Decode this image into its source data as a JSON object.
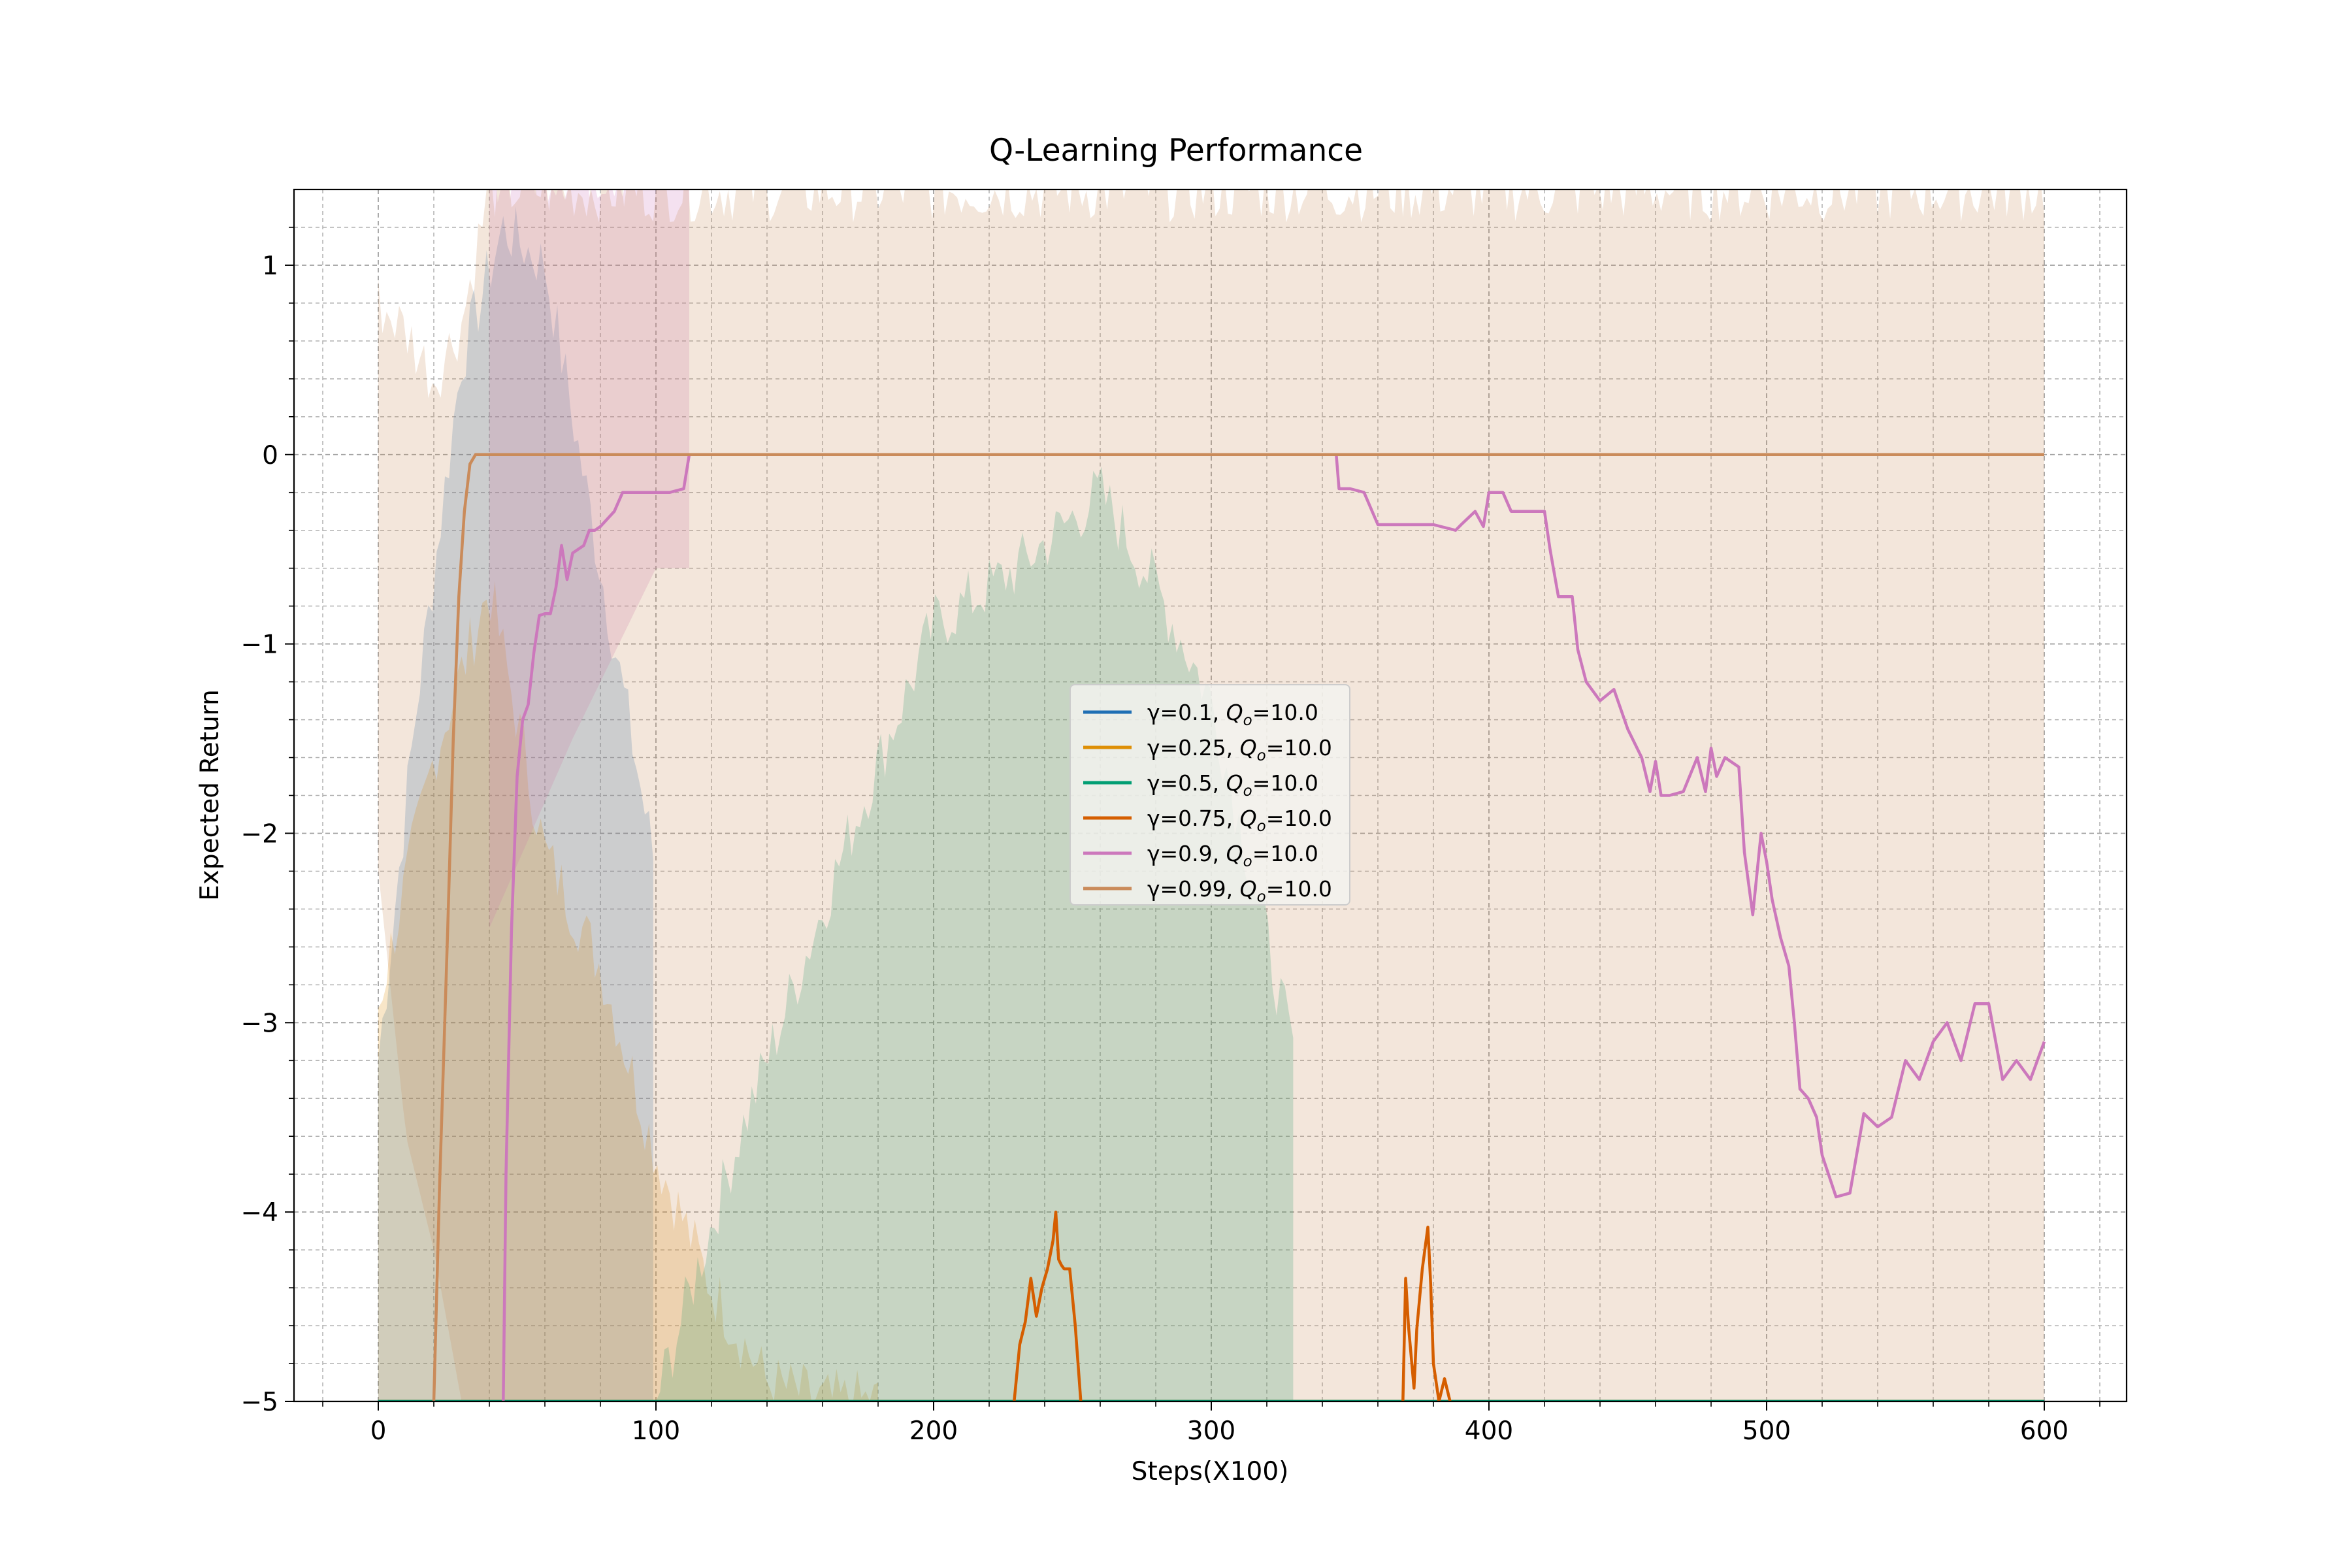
{
  "chart_data": {
    "type": "line",
    "title": "Q-Learning Performance",
    "xlabel": "Steps(X100)",
    "ylabel": "Expected Return",
    "xlim": [
      -30,
      628
    ],
    "ylim": [
      -5,
      1.4
    ],
    "xticks": [
      0,
      100,
      200,
      300,
      400,
      500,
      600
    ],
    "xtick_labels": [
      "0",
      "100",
      "200",
      "300",
      "400",
      "500",
      "600"
    ],
    "yticks": [
      1,
      0,
      -1,
      -2,
      -3,
      -4,
      -5
    ],
    "ytick_labels": [
      "1",
      "0",
      "−1",
      "−2",
      "−3",
      "−4",
      "−5"
    ],
    "grid": true,
    "legend_position": "center",
    "series": [
      {
        "name": "γ=0.1, Q_o=10.0",
        "legend_prefix": "γ=0.1, ",
        "color": "#1f6fb4",
        "x": [
          0,
          600
        ],
        "y": [
          -5,
          -5
        ],
        "band_x": [
          0,
          14,
          30,
          45,
          60,
          80,
          100
        ],
        "band_lo": [
          -5,
          -5,
          -5,
          -5,
          -5,
          -5,
          -5
        ],
        "band_hi": [
          -3.2,
          -1.3,
          0.5,
          1.2,
          1.0,
          -0.6,
          -2.2
        ]
      },
      {
        "name": "γ=0.25, Q_o=10.0",
        "legend_prefix": "γ=0.25, ",
        "color": "#de8f05",
        "x": [
          0,
          600
        ],
        "y": [
          -5,
          -5
        ],
        "band_x": [
          0,
          20,
          40,
          60,
          80,
          100,
          120,
          140,
          160,
          180
        ],
        "band_lo": [
          -5,
          -5,
          -5,
          -5,
          -5,
          -5,
          -5,
          -5,
          -5,
          -5
        ],
        "band_hi": [
          -2.9,
          -1.6,
          -0.7,
          -2.1,
          -2.7,
          -3.7,
          -4.4,
          -4.9,
          -5,
          -5
        ]
      },
      {
        "name": "γ=0.5, Q_o=10.0",
        "legend_prefix": "γ=0.5, ",
        "color": "#029e73",
        "x": [
          0,
          600
        ],
        "y": [
          -5,
          -5
        ],
        "band_x": [
          100,
          130,
          170,
          200,
          230,
          260,
          280,
          300,
          330
        ],
        "band_lo": [
          -5,
          -5,
          -5,
          -5,
          -5,
          -5,
          -5,
          -5,
          -5
        ],
        "band_hi": [
          -5,
          -3.6,
          -2.0,
          -0.9,
          -0.6,
          -0.2,
          -0.7,
          -1.3,
          -3.2
        ]
      },
      {
        "name": "γ=0.75, Q_o=10.0",
        "legend_prefix": "γ=0.75, ",
        "color": "#d55e00",
        "x": [
          229,
          231,
          233,
          235,
          237,
          239,
          241,
          243,
          244,
          245,
          246,
          247,
          249,
          251,
          253
        ],
        "y": [
          -5,
          -4.7,
          -4.58,
          -4.35,
          -4.55,
          -4.4,
          -4.3,
          -4.15,
          -4.0,
          -4.25,
          -4.28,
          -4.3,
          -4.3,
          -4.6,
          -5
        ],
        "x2": [
          369,
          370,
          371,
          373,
          374,
          376,
          378,
          379,
          380,
          382,
          384,
          386
        ],
        "y2": [
          -5,
          -4.35,
          -4.6,
          -4.93,
          -4.62,
          -4.3,
          -4.08,
          -4.38,
          -4.8,
          -5,
          -4.88,
          -5
        ],
        "band_x": [],
        "band_lo": [],
        "band_hi": []
      },
      {
        "name": "γ=0.9, Q_o=10.0",
        "legend_prefix": "γ=0.9, ",
        "color": "#cc78bc",
        "x": [
          45,
          46,
          48,
          50,
          52,
          54,
          56,
          58,
          60,
          62,
          64,
          66,
          68,
          70,
          72,
          74,
          76,
          78,
          80,
          85,
          88,
          90,
          95,
          100,
          105,
          110,
          112,
          113,
          345,
          346,
          348,
          350,
          355,
          360,
          370,
          380,
          388,
          390,
          395,
          398,
          400,
          405,
          408,
          410,
          415,
          420,
          422,
          425,
          430,
          432,
          435,
          440,
          445,
          450,
          455,
          458,
          460,
          462,
          465,
          470,
          475,
          478,
          480,
          482,
          485,
          490,
          492,
          495,
          498,
          500,
          502,
          505,
          508,
          510,
          512,
          515,
          518,
          520,
          525,
          530,
          535,
          540,
          545,
          550,
          555,
          560,
          565,
          570,
          575,
          580,
          585,
          590,
          595,
          600
        ],
        "y": [
          -5,
          -3.8,
          -2.5,
          -1.7,
          -1.4,
          -1.32,
          -1.05,
          -0.85,
          -0.84,
          -0.84,
          -0.7,
          -0.48,
          -0.66,
          -0.52,
          -0.5,
          -0.48,
          -0.4,
          -0.4,
          -0.38,
          -0.3,
          -0.2,
          -0.2,
          -0.2,
          -0.2,
          -0.2,
          -0.18,
          0,
          0,
          0,
          -0.18,
          -0.18,
          -0.18,
          -0.2,
          -0.37,
          -0.37,
          -0.37,
          -0.4,
          -0.37,
          -0.3,
          -0.38,
          -0.2,
          -0.2,
          -0.3,
          -0.3,
          -0.3,
          -0.3,
          -0.5,
          -0.75,
          -0.75,
          -1.03,
          -1.2,
          -1.3,
          -1.24,
          -1.45,
          -1.6,
          -1.78,
          -1.62,
          -1.8,
          -1.8,
          -1.78,
          -1.6,
          -1.78,
          -1.55,
          -1.7,
          -1.6,
          -1.65,
          -2.1,
          -2.43,
          -2.0,
          -2.15,
          -2.35,
          -2.55,
          -2.7,
          -3.0,
          -3.35,
          -3.4,
          -3.5,
          -3.7,
          -3.92,
          -3.9,
          -3.48,
          -3.55,
          -3.5,
          -3.2,
          -3.3,
          -3.1,
          -3.0,
          -3.2,
          -2.9,
          -2.9,
          -3.3,
          -3.2,
          -3.3,
          -3.1
        ],
        "band_x": [
          40,
          70,
          100,
          112
        ],
        "band_lo": [
          -2.5,
          -1.5,
          -0.6,
          -0.6
        ],
        "band_hi": [
          1.5,
          1.5,
          1.5,
          1.5
        ]
      },
      {
        "name": "γ=0.99, Q_o=10.0",
        "legend_prefix": "γ=0.99, ",
        "color": "#ca8b5a",
        "x": [
          20,
          22,
          25,
          27,
          29,
          31,
          33,
          35,
          600
        ],
        "y": [
          -5,
          -3.9,
          -2.5,
          -1.5,
          -0.75,
          -0.3,
          -0.05,
          0,
          0
        ],
        "band_x": [
          0,
          10,
          20,
          30,
          40,
          50,
          100,
          200,
          300,
          400,
          500,
          600
        ],
        "band_lo": [
          -2.2,
          -3.6,
          -4.2,
          -5,
          -5,
          -5,
          -5,
          -5,
          -5,
          -5,
          -5,
          -5
        ],
        "band_hi": [
          0.8,
          0.65,
          0.4,
          0.7,
          1.4,
          1.4,
          1.4,
          1.4,
          1.4,
          1.4,
          1.4,
          1.4
        ]
      }
    ]
  }
}
